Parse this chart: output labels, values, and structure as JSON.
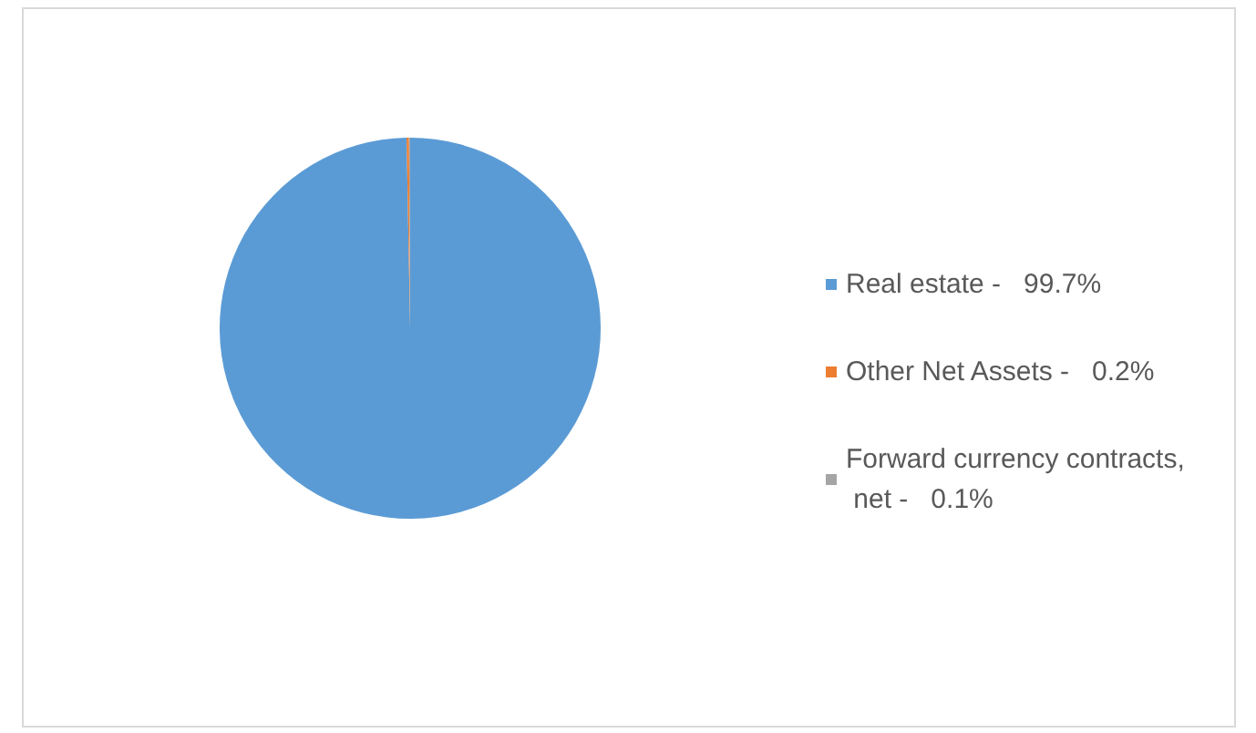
{
  "chart_data": {
    "type": "pie",
    "categories": [
      "Real estate -",
      "Other Net Assets -",
      "Forward currency contracts, net -"
    ],
    "values": [
      99.7,
      0.2,
      0.1
    ],
    "value_labels": [
      "99.7%",
      "0.2%",
      "0.1%"
    ],
    "colors": [
      "#5b9bd5",
      "#ed7d31",
      "#a5a5a5"
    ],
    "legend": "right"
  }
}
